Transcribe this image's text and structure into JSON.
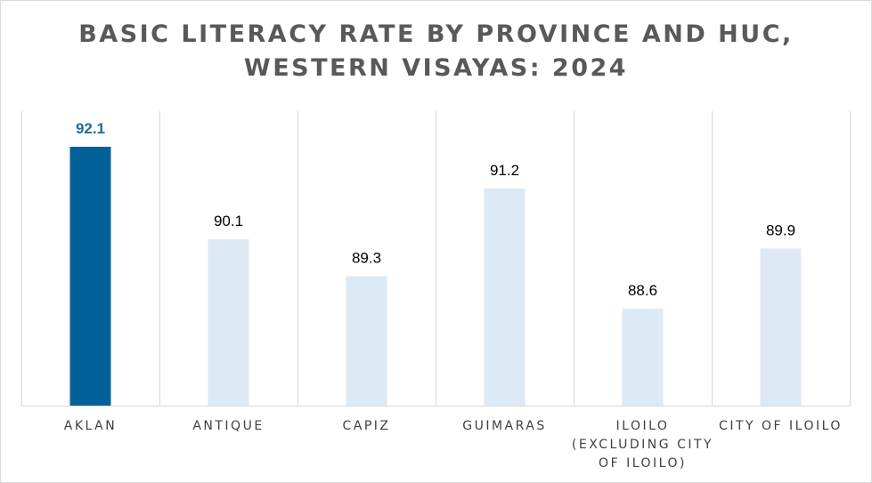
{
  "chart_data": {
    "type": "bar",
    "title_lines": [
      "BASIC LITERACY RATE BY PROVINCE AND HUC,",
      "WESTERN VISAYAS: 2024"
    ],
    "categories": [
      "AKLAN",
      "ANTIQUE",
      "CAPIZ",
      "GUIMARAS",
      "ILOILO (EXCLUDING CITY OF ILOILO)",
      "CITY OF ILOILO"
    ],
    "category_label_lines": [
      [
        "AKLAN"
      ],
      [
        "ANTIQUE"
      ],
      [
        "CAPIZ"
      ],
      [
        "GUIMARAS"
      ],
      [
        "ILOILO",
        "(EXCLUDING CITY",
        "OF ILOILO)"
      ],
      [
        "CITY OF ILOILO"
      ]
    ],
    "values": [
      92.1,
      90.1,
      89.3,
      91.2,
      88.6,
      89.9
    ],
    "value_labels": [
      "92.1",
      "90.1",
      "89.3",
      "91.2",
      "88.6",
      "89.9"
    ],
    "highlight_index": 0,
    "ylim": [
      86.5,
      92.1
    ],
    "grid": "vertical category separators",
    "legend": "none",
    "colors": {
      "highlight": "#006199",
      "bar": "#dde9f5",
      "highlight_label": "#1f6c9a",
      "separator": "#d9d9d9"
    }
  }
}
